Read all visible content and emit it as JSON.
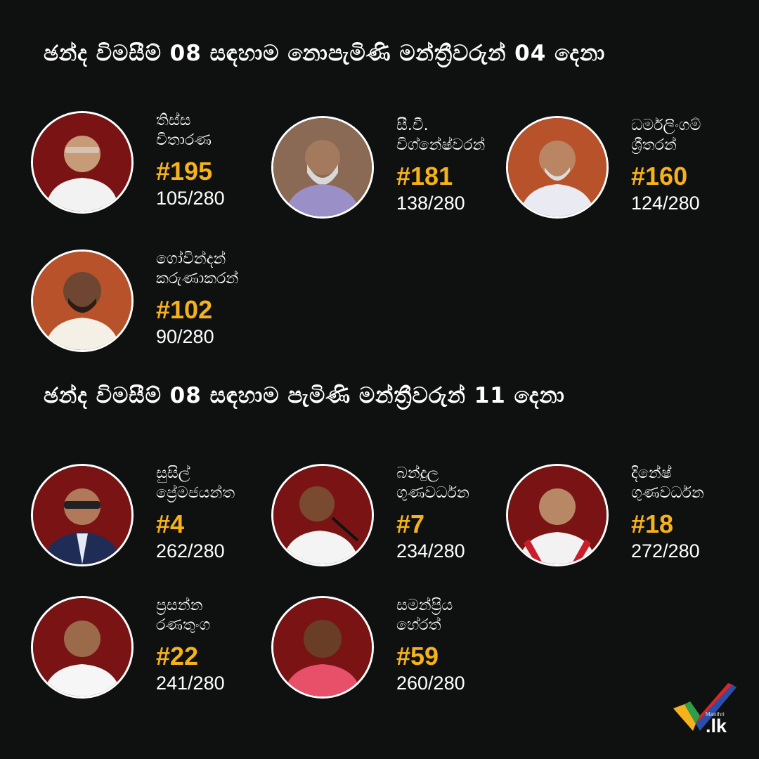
{
  "sections": [
    {
      "heading": "ඡන්ද විමසීම් 08 සඳහාම නොපැමිණි මන්ත්‍රීවරුන් 04 දෙනා",
      "members": [
        {
          "name_line1": "තිස්ස",
          "name_line2": "විතාරණ",
          "rank": "#195",
          "score": "105/280",
          "bg_color": "#7a1414"
        },
        {
          "name_line1": "සී.වී.",
          "name_line2": "විග්නේෂ්වරන්",
          "rank": "#181",
          "score": "138/280",
          "bg_color": "#8a6a55"
        },
        {
          "name_line1": "ධර්මලිංගම්",
          "name_line2": "ශ්‍රීතරන්",
          "rank": "#160",
          "score": "124/280",
          "bg_color": "#b8522a"
        },
        {
          "name_line1": "ගෝවින්දන්",
          "name_line2": "කරුණාකරන්",
          "rank": "#102",
          "score": "90/280",
          "bg_color": "#b8522a"
        }
      ]
    },
    {
      "heading": "ඡන්ද විමසීම් 08 සඳහාම පැමිණි මන්ත්‍රීවරුන් 11 දෙනා",
      "members": [
        {
          "name_line1": "සුසිල්",
          "name_line2": "ප්‍රේමජයන්ත",
          "rank": "#4",
          "score": "262/280",
          "bg_color": "#7a1414"
        },
        {
          "name_line1": "බන්දුල",
          "name_line2": "ගුණවර්ධන",
          "rank": "#7",
          "score": "234/280",
          "bg_color": "#7a1414"
        },
        {
          "name_line1": "දිනේෂ්",
          "name_line2": "ගුණවර්ධන",
          "rank": "#18",
          "score": "272/280",
          "bg_color": "#7a1414"
        },
        {
          "name_line1": "ප්‍රසන්න",
          "name_line2": "රණතුංග",
          "rank": "#22",
          "score": "241/280",
          "bg_color": "#7a1414"
        },
        {
          "name_line1": "සමන්ප්‍රිය",
          "name_line2": "හේරත්",
          "rank": "#59",
          "score": "260/280",
          "bg_color": "#7a1414"
        }
      ]
    }
  ],
  "logo": {
    "small_text": "Manthri",
    "main_text": ".lk",
    "icon": "checkmark-logo-icon",
    "colors": [
      "#f6b21a",
      "#2e9e48",
      "#2b4fa8",
      "#d8262b"
    ]
  }
}
